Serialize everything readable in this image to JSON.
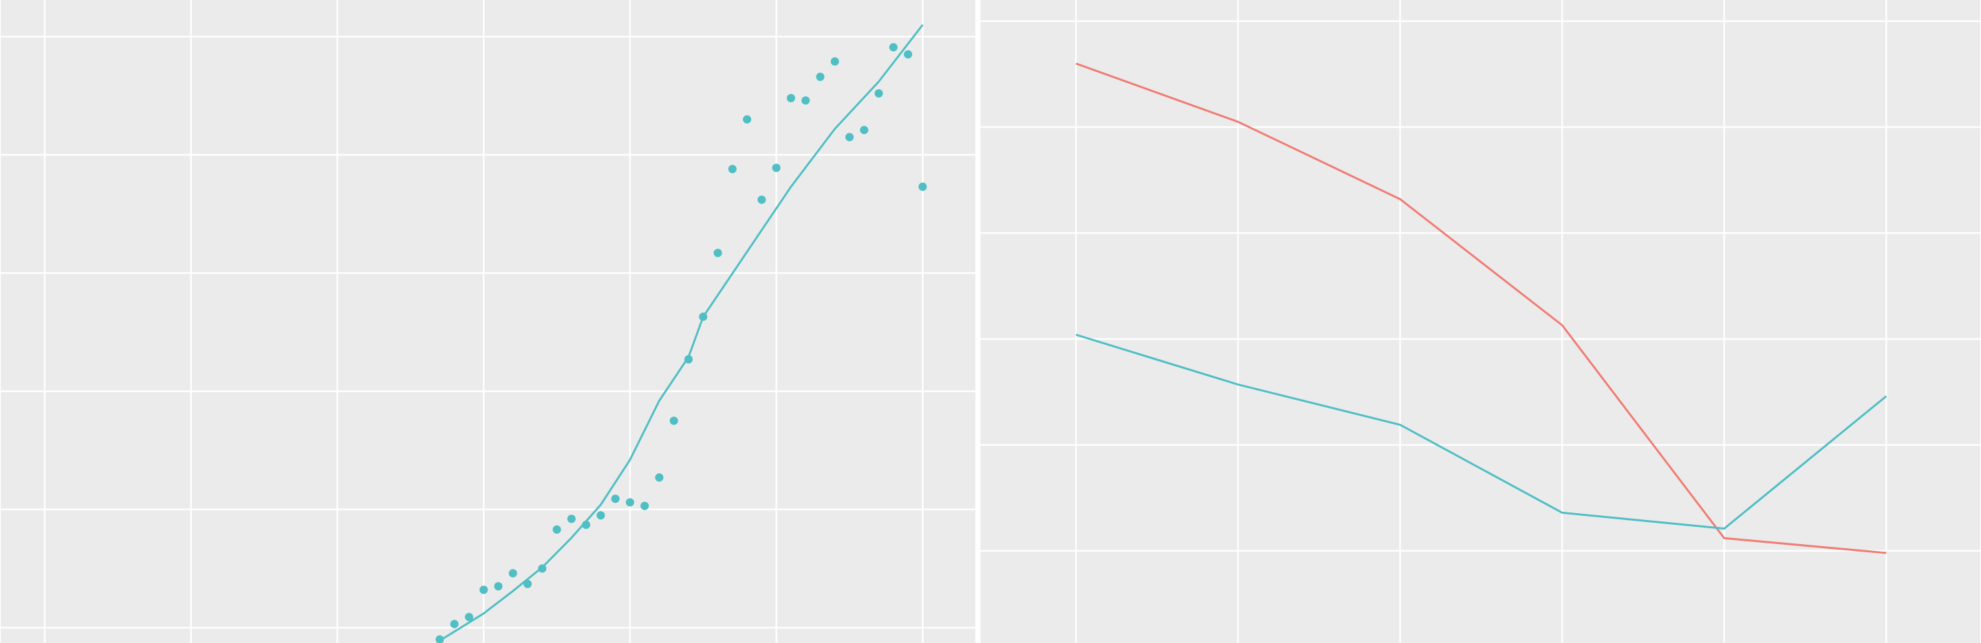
{
  "chart_data": [
    {
      "type": "scatter",
      "x": [
        2.7,
        2.8,
        2.9,
        3.0,
        3.1,
        3.2,
        3.3,
        3.4,
        3.5,
        3.6,
        3.7,
        3.8,
        3.9,
        4.0,
        4.1,
        4.2,
        4.3,
        4.4,
        4.5,
        4.6,
        4.7,
        4.8,
        4.9,
        5.0,
        5.1,
        5.2,
        5.3,
        5.4,
        5.5,
        5.6,
        5.7,
        5.8,
        5.9,
        6.0
      ],
      "values": [
        -0.1,
        0.03,
        0.09,
        0.32,
        0.35,
        0.46,
        0.37,
        0.5,
        0.83,
        0.92,
        0.87,
        0.95,
        1.09,
        1.06,
        1.03,
        1.27,
        1.75,
        2.27,
        2.63,
        3.17,
        3.88,
        4.3,
        3.62,
        3.89,
        4.48,
        4.46,
        4.66,
        4.79,
        4.15,
        4.21,
        4.52,
        4.91,
        4.85,
        3.73
      ],
      "color": "#4fbfc4",
      "trend": {
        "x": [
          2.7,
          3.0,
          3.2,
          3.4,
          3.6,
          3.8,
          4.0,
          4.2,
          4.4,
          4.5,
          4.8,
          5.1,
          5.4,
          5.7,
          6.0
        ],
        "values": [
          -0.11,
          0.12,
          0.31,
          0.51,
          0.76,
          1.04,
          1.42,
          1.92,
          2.29,
          2.63,
          3.18,
          3.73,
          4.22,
          4.62,
          5.1
        ]
      },
      "xlim": [
        -0.3,
        6.36
      ],
      "ylim": [
        -0.13,
        5.31
      ],
      "xticks": [
        0,
        1,
        2,
        3,
        4,
        5,
        6
      ],
      "yticks": [
        0,
        1,
        2,
        3,
        4,
        5
      ],
      "grid": true
    },
    {
      "type": "line",
      "x": [
        1,
        2,
        3,
        4,
        5,
        6
      ],
      "series": [
        {
          "color": "#f07c74",
          "values": [
            4.6,
            4.05,
            3.32,
            2.13,
            0.12,
            -0.02
          ]
        },
        {
          "color": "#4fbfc4",
          "values": [
            2.04,
            1.57,
            1.19,
            0.36,
            0.21,
            1.46
          ]
        }
      ],
      "xlim": [
        0.41,
        6.58
      ],
      "ylim": [
        -0.87,
        5.2
      ],
      "xticks": [
        1,
        2,
        3,
        4,
        5,
        6
      ],
      "yticks": [
        0,
        1,
        2,
        3,
        4,
        5
      ],
      "grid": true
    }
  ]
}
